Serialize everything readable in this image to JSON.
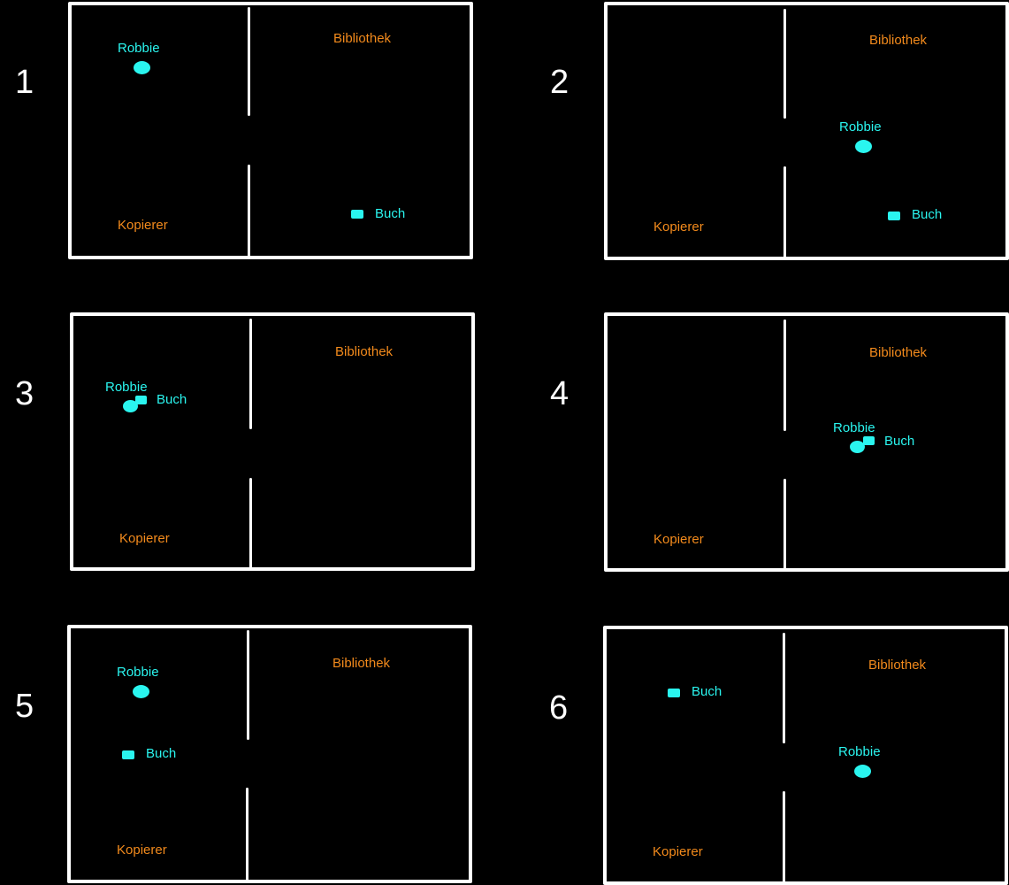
{
  "colors": {
    "background": "#000000",
    "walls": "#ffffff",
    "places": "#f28a1c",
    "objects": "#2af5ef"
  },
  "panels": [
    {
      "number": "1",
      "library": "Bibliothek",
      "copier": "Kopierer",
      "robot": "Robbie",
      "book": "Buch"
    },
    {
      "number": "2",
      "library": "Bibliothek",
      "copier": "Kopierer",
      "robot": "Robbie",
      "book": "Buch"
    },
    {
      "number": "3",
      "library": "Bibliothek",
      "copier": "Kopierer",
      "robot": "Robbie",
      "book": "Buch"
    },
    {
      "number": "4",
      "library": "Bibliothek",
      "copier": "Kopierer",
      "robot": "Robbie",
      "book": "Buch"
    },
    {
      "number": "5",
      "library": "Bibliothek",
      "copier": "Kopierer",
      "robot": "Robbie",
      "book": "Buch"
    },
    {
      "number": "6",
      "library": "Bibliothek",
      "copier": "Kopierer",
      "robot": "Robbie",
      "book": "Buch"
    }
  ]
}
